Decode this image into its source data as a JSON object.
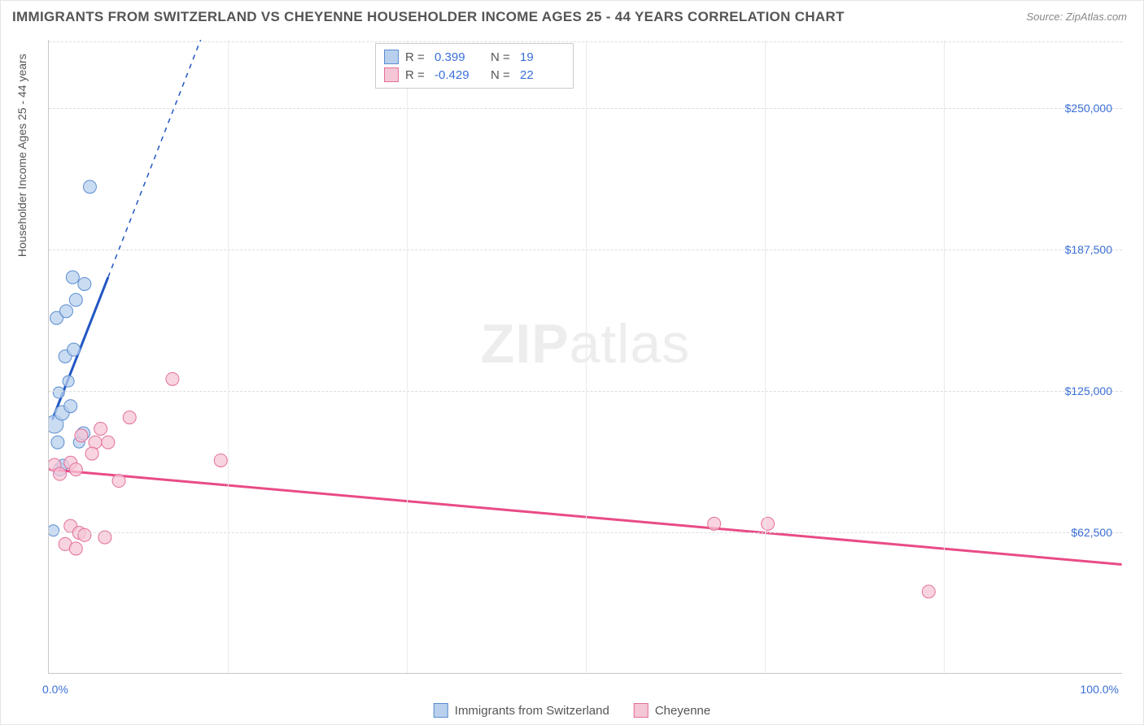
{
  "title": "IMMIGRANTS FROM SWITZERLAND VS CHEYENNE HOUSEHOLDER INCOME AGES 25 - 44 YEARS CORRELATION CHART",
  "source": "Source: ZipAtlas.com",
  "watermark_a": "ZIP",
  "watermark_b": "atlas",
  "y_axis_title": "Householder Income Ages 25 - 44 years",
  "chart": {
    "type": "scatter-correlation",
    "background_color": "#ffffff",
    "grid_color": "#dcdcdc",
    "axis_color": "#c8c8c8",
    "text_color": "#555555",
    "value_color": "#3a6fd8",
    "xlim": [
      0,
      100
    ],
    "ylim": [
      0,
      280000
    ],
    "xticks": [
      0,
      100
    ],
    "xtick_labels": [
      "0.0%",
      "100.0%"
    ],
    "yticks": [
      62500,
      125000,
      187500,
      250000
    ],
    "ytick_labels": [
      "$62,500",
      "$125,000",
      "$187,500",
      "$250,000"
    ],
    "vgrid": [
      16.67,
      33.33,
      50,
      66.67,
      83.33
    ],
    "series": [
      {
        "name": "Immigrants from Switzerland",
        "color_fill": "#b8d0ee",
        "color_stroke": "#5a8dd0",
        "marker_opacity": 0.75,
        "R": "0.399",
        "N": "19",
        "trend": {
          "x1": 0.3,
          "y1": 112000,
          "x2": 5.5,
          "y2": 175000,
          "dash_x2": 17,
          "dash_y2": 315000,
          "color": "#2156c4",
          "width": 3
        },
        "points": [
          {
            "x": 0.5,
            "y": 110000,
            "r": 11
          },
          {
            "x": 1.2,
            "y": 115000,
            "r": 9
          },
          {
            "x": 0.8,
            "y": 102000,
            "r": 8
          },
          {
            "x": 2.0,
            "y": 118000,
            "r": 8
          },
          {
            "x": 1.5,
            "y": 140000,
            "r": 8
          },
          {
            "x": 2.3,
            "y": 143000,
            "r": 8
          },
          {
            "x": 1.8,
            "y": 129000,
            "r": 7
          },
          {
            "x": 0.7,
            "y": 157000,
            "r": 8
          },
          {
            "x": 1.6,
            "y": 160000,
            "r": 8
          },
          {
            "x": 2.5,
            "y": 165000,
            "r": 8
          },
          {
            "x": 2.2,
            "y": 175000,
            "r": 8
          },
          {
            "x": 3.3,
            "y": 172000,
            "r": 8
          },
          {
            "x": 3.8,
            "y": 215000,
            "r": 8
          },
          {
            "x": 1.0,
            "y": 90000,
            "r": 8
          },
          {
            "x": 2.8,
            "y": 102000,
            "r": 7
          },
          {
            "x": 3.2,
            "y": 106000,
            "r": 8
          },
          {
            "x": 0.4,
            "y": 63000,
            "r": 7
          },
          {
            "x": 1.3,
            "y": 92000,
            "r": 7
          },
          {
            "x": 0.9,
            "y": 124000,
            "r": 7
          }
        ]
      },
      {
        "name": "Cheyenne",
        "color_fill": "#f5c6d6",
        "color_stroke": "#e36f9a",
        "marker_opacity": 0.75,
        "R": "-0.429",
        "N": "22",
        "trend": {
          "x1": 0,
          "y1": 90000,
          "x2": 100,
          "y2": 48000,
          "color": "#e94b86",
          "width": 3
        },
        "points": [
          {
            "x": 0.5,
            "y": 92000,
            "r": 8
          },
          {
            "x": 1.0,
            "y": 88000,
            "r": 8
          },
          {
            "x": 2.0,
            "y": 93000,
            "r": 8
          },
          {
            "x": 2.5,
            "y": 90000,
            "r": 8
          },
          {
            "x": 3.0,
            "y": 105000,
            "r": 8
          },
          {
            "x": 4.3,
            "y": 102000,
            "r": 8
          },
          {
            "x": 4.8,
            "y": 108000,
            "r": 8
          },
          {
            "x": 5.5,
            "y": 102000,
            "r": 8
          },
          {
            "x": 7.5,
            "y": 113000,
            "r": 8
          },
          {
            "x": 6.5,
            "y": 85000,
            "r": 8
          },
          {
            "x": 11.5,
            "y": 130000,
            "r": 8
          },
          {
            "x": 16.0,
            "y": 94000,
            "r": 8
          },
          {
            "x": 2.0,
            "y": 65000,
            "r": 8
          },
          {
            "x": 2.8,
            "y": 62000,
            "r": 8
          },
          {
            "x": 3.3,
            "y": 61000,
            "r": 8
          },
          {
            "x": 1.5,
            "y": 57000,
            "r": 8
          },
          {
            "x": 5.2,
            "y": 60000,
            "r": 8
          },
          {
            "x": 2.5,
            "y": 55000,
            "r": 8
          },
          {
            "x": 62.0,
            "y": 66000,
            "r": 8
          },
          {
            "x": 67.0,
            "y": 66000,
            "r": 8
          },
          {
            "x": 82.0,
            "y": 36000,
            "r": 8
          },
          {
            "x": 4.0,
            "y": 97000,
            "r": 8
          }
        ]
      }
    ]
  },
  "corr_legend": {
    "rows": [
      {
        "label_r": "R =",
        "val_r": "0.399",
        "label_n": "N =",
        "val_n": "19"
      },
      {
        "label_r": "R =",
        "val_r": "-0.429",
        "label_n": "N =",
        "val_n": "22"
      }
    ]
  }
}
